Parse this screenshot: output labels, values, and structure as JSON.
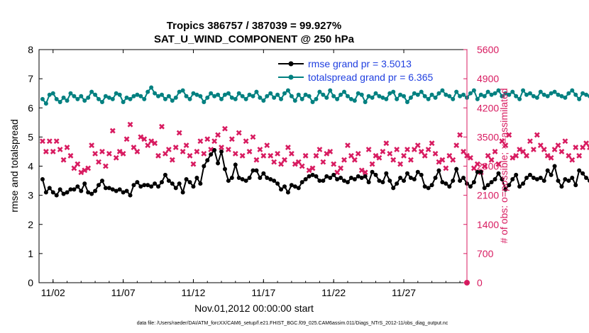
{
  "chart_data": {
    "type": "line",
    "title_line1": "Tropics 386757 / 387039 = 99.927%",
    "title_line2": "SAT_U_WIND_COMPONENT @ 250 hPa",
    "xlabel": "Nov.01,2012 00:00:00 start",
    "ylabel_left": "rmse and totalspread",
    "ylabel_right": "# of obs: o=possible; ×=assimilated",
    "footnote": "data file: /Users/raeder/DAI/ATM_forcXX/CAM6_setup/f.e21.FHIST_BGC.f09_025.CAM6assim.011/Diags_NTrS_2012-11/obs_diag_output.nc",
    "xlim": [
      0,
      30.5
    ],
    "ylim_left": [
      0,
      8
    ],
    "ylim_right": [
      0,
      5600
    ],
    "xticks": [
      {
        "pos": 1,
        "label": "11/02"
      },
      {
        "pos": 6,
        "label": "11/07"
      },
      {
        "pos": 11,
        "label": "11/12"
      },
      {
        "pos": 16,
        "label": "11/17"
      },
      {
        "pos": 21,
        "label": "11/22"
      },
      {
        "pos": 26,
        "label": "11/27"
      }
    ],
    "yticks_left": [
      "0",
      "1",
      "2",
      "3",
      "4",
      "5",
      "6",
      "7",
      "8"
    ],
    "yticks_right": [
      "0",
      "700",
      "1400",
      "2100",
      "2800",
      "3500",
      "4200",
      "4900",
      "5600"
    ],
    "legend_position": "top-right",
    "colors": {
      "rmse": "#000000",
      "spread": "#008080",
      "nobs": "#d81b60"
    },
    "series": [
      {
        "name": "rmse grand pr = 3.5013",
        "x0": 0.25,
        "dx": 0.25,
        "values": [
          3.55,
          3.1,
          3.25,
          3.1,
          3.0,
          3.2,
          3.05,
          3.1,
          3.2,
          3.2,
          3.3,
          3.15,
          3.4,
          3.1,
          3.05,
          3.15,
          3.35,
          3.5,
          3.25,
          3.25,
          3.2,
          3.15,
          3.2,
          3.1,
          3.15,
          3.0,
          3.35,
          3.45,
          3.3,
          3.35,
          3.35,
          3.3,
          3.4,
          3.3,
          3.45,
          3.7,
          3.5,
          3.4,
          3.25,
          3.4,
          3.1,
          3.55,
          3.45,
          3.3,
          3.6,
          3.4,
          4.0,
          4.2,
          4.4,
          4.55,
          4.1,
          4.5,
          3.9,
          3.5,
          3.6,
          4.05,
          3.6,
          3.55,
          3.5,
          3.6,
          3.85,
          3.85,
          3.6,
          3.75,
          3.6,
          3.55,
          3.5,
          3.4,
          3.2,
          3.3,
          3.1,
          3.35,
          3.3,
          3.25,
          3.45,
          3.55,
          3.65,
          3.7,
          3.65,
          3.5,
          3.5,
          3.65,
          3.6,
          3.7,
          3.55,
          3.6,
          3.5,
          3.45,
          3.6,
          3.55,
          3.65,
          3.6,
          3.65,
          3.45,
          3.8,
          3.7,
          3.5,
          3.45,
          3.75,
          3.5,
          3.25,
          3.4,
          3.6,
          3.5,
          3.75,
          3.6,
          3.55,
          3.8,
          3.7,
          3.3,
          3.25,
          3.35,
          3.6,
          3.85,
          3.45,
          3.4,
          3.3,
          3.5,
          3.9,
          3.5,
          3.6,
          3.4,
          3.3,
          3.45,
          3.8,
          3.8,
          3.25,
          3.35,
          3.45,
          3.55,
          3.75,
          3.55,
          3.2,
          3.35,
          3.55,
          3.7,
          3.3,
          3.4,
          3.6,
          3.7,
          3.6,
          3.55,
          3.6,
          3.5,
          3.85,
          3.7,
          4.0,
          3.5,
          3.3,
          3.55,
          3.5,
          3.6,
          3.35,
          3.85,
          3.75,
          3.6,
          3.5,
          4.25,
          3.6,
          3.7,
          3.5,
          3.45,
          3.55,
          3.6,
          3.35,
          3.4,
          3.25,
          3.5,
          3.6,
          3.75,
          3.65,
          3.45,
          3.7,
          3.4,
          3.6,
          3.3,
          3.25,
          3.5,
          3.4,
          3.3,
          3.6,
          3.5,
          3.55,
          3.65,
          3.5,
          3.4,
          3.6,
          3.55,
          3.5,
          3.3
        ]
      },
      {
        "name": "totalspread grand pr = 6.365",
        "x0": 0.25,
        "dx": 0.25,
        "values": [
          6.3,
          6.15,
          6.45,
          6.5,
          6.3,
          6.2,
          6.35,
          6.25,
          6.5,
          6.4,
          6.3,
          6.4,
          6.25,
          6.35,
          6.55,
          6.45,
          6.3,
          6.2,
          6.4,
          6.35,
          6.3,
          6.5,
          6.45,
          6.2,
          6.35,
          6.3,
          6.4,
          6.45,
          6.4,
          6.3,
          6.55,
          6.7,
          6.5,
          6.4,
          6.45,
          6.3,
          6.4,
          6.25,
          6.35,
          6.55,
          6.6,
          6.4,
          6.3,
          6.5,
          6.45,
          6.4,
          6.2,
          6.35,
          6.5,
          6.4,
          6.45,
          6.3,
          6.45,
          6.5,
          6.35,
          6.3,
          6.5,
          6.4,
          6.3,
          6.45,
          6.4,
          6.55,
          6.35,
          6.25,
          6.4,
          6.5,
          6.35,
          6.45,
          6.3,
          6.5,
          6.6,
          6.4,
          6.25,
          6.45,
          6.3,
          6.45,
          6.4,
          6.2,
          6.3,
          6.55,
          6.45,
          6.35,
          6.6,
          6.4,
          6.3,
          6.45,
          6.55,
          6.4,
          6.3,
          6.25,
          6.5,
          6.45,
          6.2,
          6.4,
          6.35,
          6.5,
          6.4,
          6.35,
          6.3,
          6.5,
          6.55,
          6.3,
          6.45,
          6.4,
          6.2,
          6.35,
          6.5,
          6.45,
          6.55,
          6.4,
          6.3,
          6.45,
          6.35,
          6.5,
          6.6,
          6.45,
          6.4,
          6.3,
          6.55,
          6.4,
          6.45,
          6.35,
          6.5,
          6.6,
          6.3,
          6.45,
          6.4,
          6.55,
          6.45,
          6.5,
          6.6,
          6.4,
          6.5,
          6.45,
          6.55,
          6.4,
          6.3,
          6.6,
          6.45,
          6.5,
          6.4,
          6.35,
          6.55,
          6.45,
          6.4,
          6.5,
          6.55,
          6.45,
          6.4,
          6.35,
          6.5,
          6.6,
          6.45,
          6.3,
          6.5,
          6.45,
          6.4,
          6.55,
          6.5,
          6.4,
          6.45,
          6.55,
          6.35,
          6.5,
          6.4,
          6.45,
          6.55,
          6.5,
          6.45,
          6.4,
          6.55,
          6.45,
          6.35,
          6.5,
          6.55,
          6.45,
          6.5,
          6.45,
          6.4,
          6.55,
          6.5,
          6.45,
          6.55,
          6.5,
          6.6,
          6.55,
          6.5,
          6.55,
          6.6,
          6.55
        ]
      },
      {
        "name": "# of obs assimilated",
        "axis": "right",
        "x0": 0.25,
        "dx": 0.25,
        "values": [
          3400,
          3150,
          3400,
          3150,
          3400,
          3200,
          2950,
          3250,
          3050,
          2750,
          2850,
          2650,
          2700,
          2750,
          3300,
          3100,
          2900,
          3150,
          2800,
          3100,
          3650,
          3000,
          3150,
          3100,
          3450,
          3800,
          3250,
          3150,
          3500,
          3450,
          3300,
          3400,
          3350,
          3050,
          3750,
          3100,
          3200,
          2950,
          3250,
          3600,
          3150,
          3300,
          3050,
          2850,
          3150,
          3400,
          3100,
          3450,
          3200,
          3400,
          3550,
          3250,
          3700,
          3200,
          3450,
          3100,
          3600,
          3050,
          3400,
          3150,
          3500,
          2950,
          3200,
          3050,
          3300,
          3050,
          2900,
          3100,
          2850,
          2950,
          3250,
          3100,
          2850,
          2900,
          2800,
          3050,
          2700,
          2750,
          3050,
          3200,
          2900,
          3100,
          3150,
          2850,
          2650,
          2750,
          2950,
          3300,
          3050,
          2950,
          3100,
          2700,
          2650,
          3200,
          2850,
          3050,
          3000,
          3150,
          3350,
          3100,
          2950,
          3200,
          2850,
          3050,
          3200,
          2950,
          3200,
          3300,
          3150,
          3050,
          3200,
          3350,
          3100,
          2900,
          2950,
          2750,
          3050,
          2950,
          3300,
          3550,
          3150,
          3050,
          3000,
          2750,
          2850,
          2650,
          2800,
          3050,
          2950,
          3150,
          2850,
          3400,
          3300,
          3550,
          3000,
          3050,
          3200,
          3150,
          3050,
          3400,
          3200,
          3550,
          3300,
          3200,
          3050,
          3000,
          3200,
          3300,
          3150,
          3400,
          3050,
          2950,
          3250,
          3050,
          3250,
          3350,
          3250,
          3050,
          3250,
          3150,
          3050,
          3200,
          3050,
          3000,
          3300,
          3100,
          3200,
          3100,
          3350,
          3150,
          2950,
          3200,
          3050,
          3150,
          3200,
          2950,
          3250,
          3050,
          3200,
          3050,
          3150,
          3000,
          3250,
          3100,
          3050,
          2950,
          3200,
          3050
        ]
      }
    ]
  }
}
